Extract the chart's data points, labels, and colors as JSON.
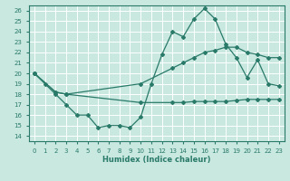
{
  "title": "",
  "xlabel": "Humidex (Indice chaleur)",
  "xlim": [
    -0.5,
    23.5
  ],
  "ylim": [
    13.5,
    26.5
  ],
  "yticks": [
    14,
    15,
    16,
    17,
    18,
    19,
    20,
    21,
    22,
    23,
    24,
    25,
    26
  ],
  "xticks": [
    0,
    1,
    2,
    3,
    4,
    5,
    6,
    7,
    8,
    9,
    10,
    11,
    12,
    13,
    14,
    15,
    16,
    17,
    18,
    19,
    20,
    21,
    22,
    23
  ],
  "bg_color": "#c8e8e0",
  "grid_color": "#ffffff",
  "line_color": "#2a7a6a",
  "line1_x": [
    0,
    1,
    2,
    3,
    4,
    5,
    6,
    7,
    8,
    9,
    10,
    11,
    12,
    13,
    14,
    15,
    16,
    17,
    18,
    19,
    20,
    21,
    22,
    23
  ],
  "line1_y": [
    20,
    19,
    18,
    17,
    16,
    16,
    14.8,
    15,
    15,
    14.8,
    15.8,
    19.0,
    21.8,
    24.0,
    23.5,
    25.2,
    26.2,
    25.2,
    22.8,
    21.5,
    19.6,
    21.3,
    19.0,
    18.8
  ],
  "line2_x": [
    0,
    2,
    3,
    10,
    13,
    14,
    15,
    16,
    17,
    18,
    19,
    20,
    21,
    22,
    23
  ],
  "line2_y": [
    20,
    18.2,
    18.0,
    19.0,
    20.5,
    21.0,
    21.5,
    22.0,
    22.2,
    22.5,
    22.5,
    22.0,
    21.8,
    21.5,
    21.5
  ],
  "line3_x": [
    0,
    2,
    3,
    10,
    13,
    14,
    15,
    16,
    17,
    18,
    19,
    20,
    21,
    22,
    23
  ],
  "line3_y": [
    20,
    18.2,
    18.0,
    17.2,
    17.2,
    17.2,
    17.3,
    17.3,
    17.3,
    17.3,
    17.4,
    17.5,
    17.5,
    17.5,
    17.5
  ]
}
